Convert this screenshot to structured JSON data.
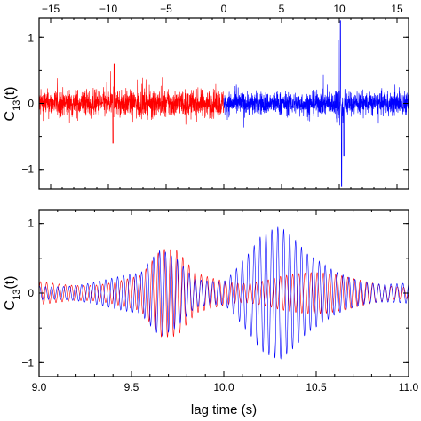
{
  "colors": {
    "negative_lag": "#ff0000",
    "positive_lag": "#0000ff",
    "axes": "#000000"
  },
  "chart_data": [
    {
      "type": "line",
      "panel": "top",
      "xlabel_top_ticks": [
        -15,
        -10,
        -5,
        0,
        5,
        10,
        15
      ],
      "ylabel_main": "C",
      "ylabel_sub": "13",
      "ylabel_suffix": "(t)",
      "xlim": [
        -16,
        16
      ],
      "ylim": [
        -1.3,
        1.3
      ],
      "yticks": [
        -1,
        0,
        1
      ],
      "series": [
        {
          "color": "#ff0000",
          "x_range": [
            -16,
            0
          ],
          "amplitude": 0.35,
          "peaks": [
            [
              -9.5,
              0.6
            ],
            [
              -9.6,
              -0.6
            ]
          ]
        },
        {
          "color": "#0000ff",
          "x_range": [
            0,
            16
          ],
          "amplitude": 0.3,
          "peaks": [
            [
              10.1,
              0.9
            ],
            [
              10.2,
              -1.0
            ],
            [
              9.9,
              0.6
            ],
            [
              10.4,
              -0.5
            ]
          ]
        }
      ]
    },
    {
      "type": "line",
      "panel": "bottom",
      "xlabel": "lag time (s)",
      "ylabel_main": "C",
      "ylabel_sub": "13",
      "ylabel_suffix": "(t)",
      "xlim": [
        9.0,
        11.0
      ],
      "ylim": [
        -1.2,
        1.2
      ],
      "xticks": [
        9.0,
        9.5,
        10.0,
        10.5,
        11.0
      ],
      "xtick_labels": [
        "9.0",
        "9.5",
        "10.0",
        "10.5",
        "11.0"
      ],
      "yticks": [
        -1,
        0,
        1
      ],
      "series": [
        {
          "color": "#ff0000",
          "frequency_hz": 30,
          "envelope": [
            [
              9.0,
              0.18
            ],
            [
              9.3,
              0.2
            ],
            [
              9.55,
              0.25
            ],
            [
              9.66,
              0.55
            ],
            [
              9.75,
              0.55
            ],
            [
              9.85,
              0.3
            ],
            [
              10.1,
              0.25
            ],
            [
              10.3,
              0.3
            ],
            [
              10.55,
              0.25
            ],
            [
              11.0,
              0.15
            ]
          ]
        },
        {
          "color": "#0000ff",
          "frequency_hz": 31,
          "envelope": [
            [
              9.0,
              0.15
            ],
            [
              9.3,
              0.2
            ],
            [
              9.55,
              0.25
            ],
            [
              9.66,
              0.6
            ],
            [
              9.75,
              0.55
            ],
            [
              9.85,
              0.3
            ],
            [
              10.0,
              0.3
            ],
            [
              10.1,
              0.7
            ],
            [
              10.2,
              0.95
            ],
            [
              10.3,
              0.9
            ],
            [
              10.45,
              0.5
            ],
            [
              10.6,
              0.35
            ],
            [
              10.8,
              0.25
            ],
            [
              11.0,
              0.2
            ]
          ]
        }
      ]
    }
  ]
}
